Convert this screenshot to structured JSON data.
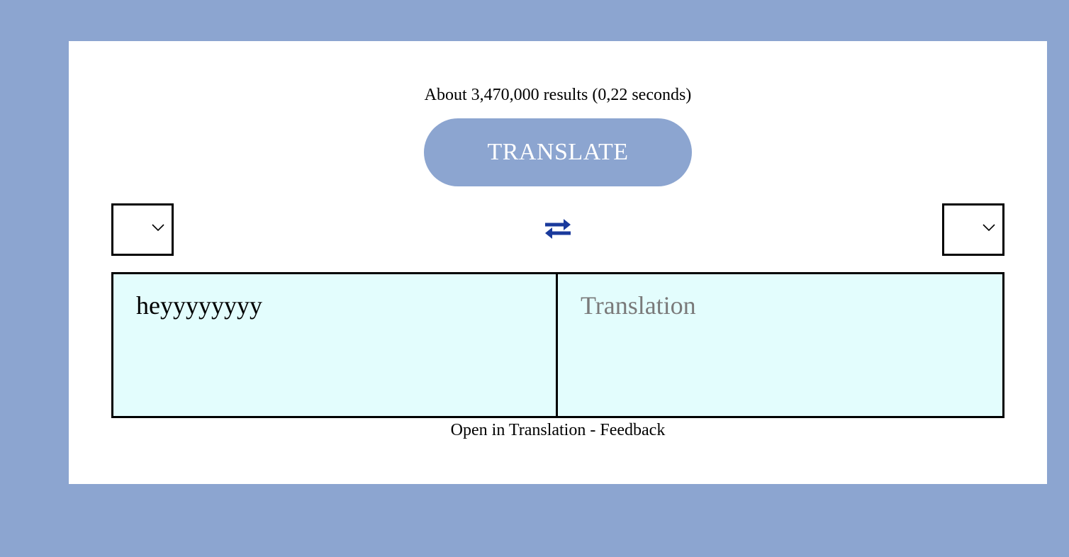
{
  "results": {
    "text": "About 3,470,000 results (0,22 seconds)"
  },
  "translate_button": {
    "label": "TRANSLATE"
  },
  "source_language": {
    "selected": ""
  },
  "target_language": {
    "selected": ""
  },
  "swap": {
    "icon": "swap-arrows-icon",
    "color": "#1a3a9c"
  },
  "source_panel": {
    "text": "heyyyyyyyy"
  },
  "target_panel": {
    "placeholder": "Translation"
  },
  "footer": {
    "open_link": "Open in Translation",
    "separator": " - ",
    "feedback_link": "Feedback"
  },
  "colors": {
    "background": "#8ca5d0",
    "panel_bg": "#e3fdfd",
    "button_bg": "#8ca5d0"
  }
}
